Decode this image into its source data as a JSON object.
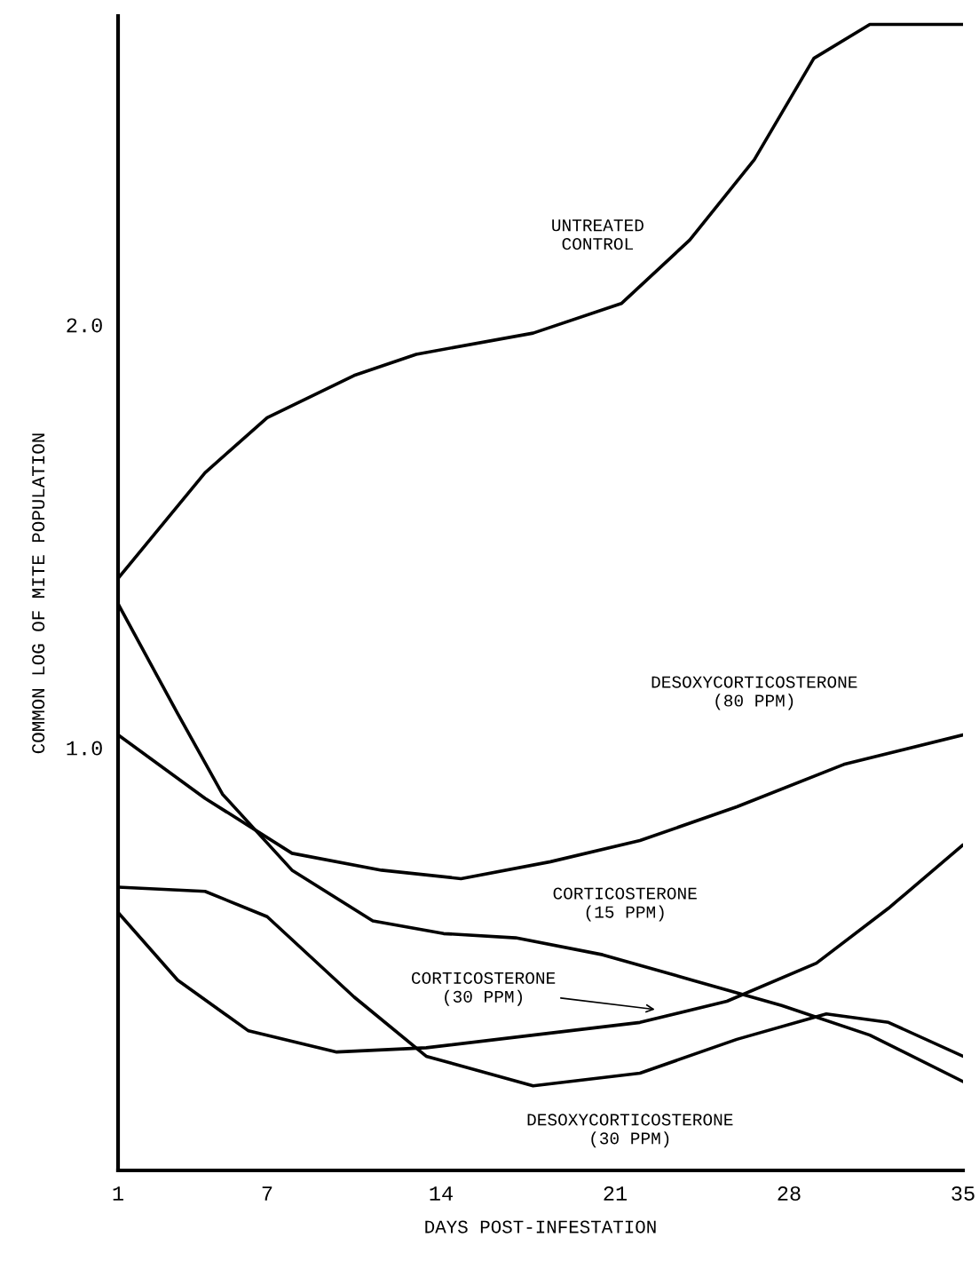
{
  "chart_data": {
    "type": "line",
    "xlabel": "DAYS POST-INFESTATION",
    "ylabel": "COMMON LOG OF MITE POPULATION",
    "xlim": [
      1,
      35
    ],
    "ylim": [
      0,
      2.73
    ],
    "xticks": [
      1,
      7,
      14,
      21,
      28,
      35
    ],
    "yticks": [
      {
        "value": 1.0,
        "label": "1.0"
      },
      {
        "value": 2.0,
        "label": "2.0"
      }
    ],
    "grid": false,
    "legend": false,
    "marker": "none",
    "line_style": "solid",
    "series": [
      {
        "name": "UNTREATED\nCONTROL",
        "color": "#000000",
        "x": [
          1,
          4.5,
          7,
          10.5,
          13,
          17.7,
          21.25,
          24,
          26.6,
          29,
          31.25,
          35
        ],
        "values": [
          1.4,
          1.65,
          1.78,
          1.88,
          1.93,
          1.98,
          2.05,
          2.2,
          2.39,
          2.63,
          2.71,
          2.71
        ]
      },
      {
        "name": "DESOXYCORTICOSTERONE\n(80 PPM)",
        "color": "#000000",
        "x": [
          1,
          4.5,
          8,
          11.6,
          14.8,
          18.4,
          22,
          25.9,
          30.2,
          35
        ],
        "values": [
          1.03,
          0.88,
          0.75,
          0.71,
          0.69,
          0.73,
          0.78,
          0.86,
          0.96,
          1.03
        ]
      },
      {
        "name": "CORTICOSTERONE\n(15 PPM)",
        "color": "#000000",
        "x": [
          1,
          3.4,
          5.2,
          8,
          11.25,
          14.1,
          17,
          20.5,
          24.1,
          27.7,
          31.25,
          35
        ],
        "values": [
          1.34,
          1.08,
          0.89,
          0.71,
          0.59,
          0.56,
          0.55,
          0.51,
          0.45,
          0.39,
          0.32,
          0.21
        ]
      },
      {
        "name": "CORTICOSTERONE\n(30 PPM)",
        "color": "#000000",
        "x": [
          1,
          3.4,
          6.25,
          9.8,
          13.4,
          17.7,
          22,
          25.5,
          29.1,
          32,
          35
        ],
        "values": [
          0.61,
          0.45,
          0.33,
          0.28,
          0.29,
          0.32,
          0.35,
          0.4,
          0.49,
          0.62,
          0.77
        ]
      },
      {
        "name": "DESOXYCORTICOSTERONE\n(30 PPM)",
        "color": "#000000",
        "x": [
          1,
          4.5,
          7,
          10.5,
          13.4,
          17.7,
          22,
          25.9,
          29.5,
          32,
          35
        ],
        "values": [
          0.67,
          0.66,
          0.6,
          0.41,
          0.27,
          0.2,
          0.23,
          0.31,
          0.37,
          0.35,
          0.27
        ]
      }
    ]
  }
}
